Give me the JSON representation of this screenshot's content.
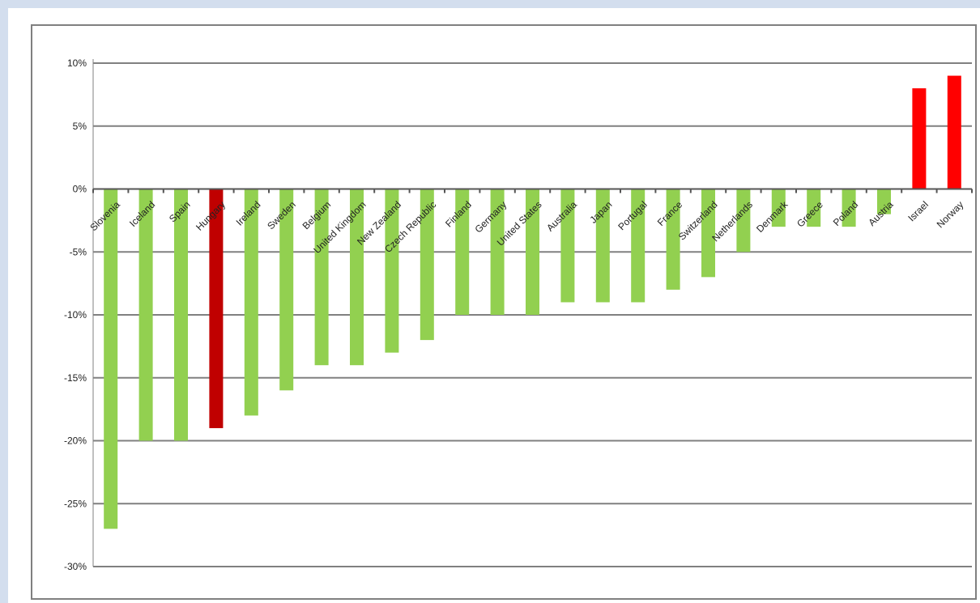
{
  "chart_data": {
    "type": "bar",
    "title": "",
    "xlabel": "",
    "ylabel": "",
    "ylim": [
      -30,
      10
    ],
    "yticks": [
      "10%",
      "5%",
      "0%",
      "-5%",
      "-10%",
      "-15%",
      "-20%",
      "-25%",
      "-30%"
    ],
    "ytick_values": [
      10,
      5,
      0,
      -5,
      -10,
      -15,
      -20,
      -25,
      -30
    ],
    "grid": true,
    "legend": "none",
    "categories": [
      "Slovenia",
      "Iceland",
      "Spain",
      "Hungary",
      "Ireland",
      "Sweden",
      "Belgium",
      "United Kingdom",
      "New Zealand",
      "Czech Republic",
      "Finland",
      "Germany",
      "United States",
      "Australia",
      "Japan",
      "Portugal",
      "France",
      "Switzerland",
      "Netherlands",
      "Denmark",
      "Greece",
      "Poland",
      "Austria",
      "Israel",
      "Norway"
    ],
    "values": [
      -27,
      -20,
      -20,
      -19,
      -18,
      -16,
      -14,
      -14,
      -13,
      -12,
      -10,
      -10,
      -10,
      -9,
      -9,
      -9,
      -8,
      -7,
      -5,
      -3,
      -3,
      -3,
      -2,
      8,
      9
    ],
    "bar_colors": [
      "#92d050",
      "#92d050",
      "#92d050",
      "#c00000",
      "#92d050",
      "#92d050",
      "#92d050",
      "#92d050",
      "#92d050",
      "#92d050",
      "#92d050",
      "#92d050",
      "#92d050",
      "#92d050",
      "#92d050",
      "#92d050",
      "#92d050",
      "#92d050",
      "#92d050",
      "#92d050",
      "#92d050",
      "#92d050",
      "#92d050",
      "#ff0000",
      "#ff0000"
    ]
  },
  "colors": {
    "background": "#d3deee",
    "plot_background": "#ffffff",
    "gridline": "#808080",
    "frame": "#808080"
  }
}
